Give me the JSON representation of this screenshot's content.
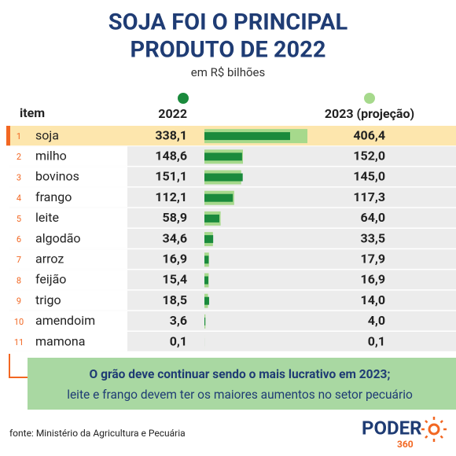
{
  "chart_data": {
    "type": "bar",
    "title": [
      "SOJA FOI O PRINCIPAL",
      "PRODUTO DE 2022"
    ],
    "subtitle": "em R$ bilhões",
    "item_header": "item",
    "ranks": [
      "1",
      "2",
      "3",
      "4",
      "5",
      "6",
      "7",
      "8",
      "9",
      "10",
      "11"
    ],
    "categories": [
      "soja",
      "milho",
      "bovinos",
      "frango",
      "leite",
      "algodão",
      "arroz",
      "feijão",
      "trigo",
      "amendoim",
      "mamona"
    ],
    "series": [
      {
        "name": "2022",
        "color": "#1a8a3c",
        "values": [
          338.1,
          148.6,
          151.1,
          112.1,
          58.9,
          34.6,
          16.9,
          15.4,
          18.5,
          3.6,
          0.1
        ],
        "value_labels": [
          "338,1",
          "148,6",
          "151,1",
          "112,1",
          "58,9",
          "34,6",
          "16,9",
          "15,4",
          "18,5",
          "3,6",
          "0,1"
        ]
      },
      {
        "name": "2023 (projeção)",
        "color": "#a6d98c",
        "values": [
          406.4,
          152.0,
          145.0,
          117.3,
          64.0,
          33.5,
          17.9,
          16.9,
          14.0,
          4.0,
          0.1
        ],
        "value_labels": [
          "406,4",
          "152,0",
          "145,0",
          "117,3",
          "64,0",
          "33,5",
          "17,9",
          "16,9",
          "14,0",
          "4,0",
          "0,1"
        ]
      }
    ],
    "note": [
      "O grão deve continuar sendo o mais lucrativo em 2023;",
      "leite e frango devem ter os maiores aumentos no setor pecuário"
    ],
    "source": "fonte: Ministério da Agricultura e Pecuária",
    "logo": {
      "text": "PODER",
      "sub": "360"
    }
  }
}
